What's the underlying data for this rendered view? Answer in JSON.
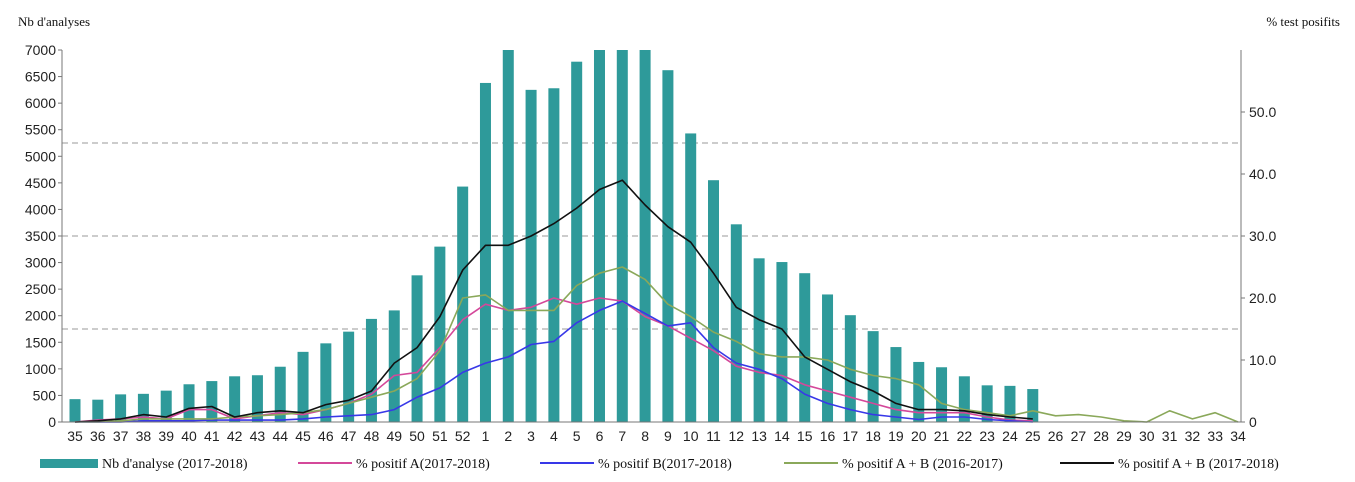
{
  "chart_data": {
    "type": "bar+line",
    "y_left_label": "Nb d'analyses",
    "y_right_label": "% test posifits",
    "y_left_lim": [
      0,
      7000
    ],
    "y_left_ticks": [
      "0",
      "500",
      "1000",
      "1500",
      "2000",
      "2500",
      "3000",
      "3500",
      "4000",
      "4500",
      "5000",
      "5500",
      "6000",
      "6500",
      "7000"
    ],
    "y_right_lim": [
      0,
      60
    ],
    "y_right_ticks": [
      "0",
      "10.0",
      "20.0",
      "30.0",
      "40.0",
      "50.0"
    ],
    "right_grid_values": [
      15,
      30,
      45
    ],
    "grid": "dashed horizontal",
    "legend_position": "bottom",
    "categories": [
      "35",
      "36",
      "37",
      "38",
      "39",
      "40",
      "41",
      "42",
      "43",
      "44",
      "45",
      "46",
      "47",
      "48",
      "49",
      "50",
      "51",
      "52",
      "1",
      "2",
      "3",
      "4",
      "5",
      "6",
      "7",
      "8",
      "9",
      "10",
      "11",
      "12",
      "13",
      "14",
      "15",
      "16",
      "17",
      "18",
      "19",
      "20",
      "21",
      "22",
      "23",
      "24",
      "25",
      "26",
      "27",
      "28",
      "29",
      "30",
      "31",
      "32",
      "33",
      "34"
    ],
    "bars": {
      "name": "Nb d'analyse (2017-2018)",
      "color": "#2e9a9a",
      "axis": "left",
      "values": [
        430,
        420,
        520,
        530,
        590,
        710,
        770,
        860,
        880,
        1040,
        1320,
        1480,
        1700,
        1940,
        2100,
        2760,
        3300,
        4430,
        6380,
        7000,
        6250,
        6280,
        6780,
        7000,
        7000,
        7000,
        6620,
        5430,
        4550,
        3720,
        3080,
        3010,
        2800,
        2400,
        2010,
        1710,
        1410,
        1130,
        1030,
        860,
        690,
        680,
        620,
        null,
        null,
        null,
        null,
        null,
        null,
        null,
        null,
        null
      ]
    },
    "series": [
      {
        "name": "% positif A(2017-2018)",
        "color": "#d4489a",
        "axis": "right",
        "values": [
          0,
          0.3,
          0.5,
          0.8,
          0.5,
          2.0,
          2.0,
          0.5,
          1.0,
          1.5,
          1.2,
          2.0,
          3.0,
          4.5,
          7.5,
          8.0,
          12.0,
          16.5,
          19.0,
          18.0,
          18.5,
          20.0,
          19.0,
          20.0,
          19.5,
          17.0,
          15.5,
          13.5,
          11.5,
          9.0,
          8.0,
          7.5,
          6.0,
          5.0,
          4.0,
          3.0,
          2.0,
          1.5,
          1.5,
          1.5,
          0.8,
          0.3,
          0.2,
          null,
          null,
          null,
          null,
          null,
          null,
          null,
          null,
          null
        ]
      },
      {
        "name": "% positif B(2017-2018)",
        "color": "#3838e8",
        "axis": "right",
        "values": [
          0,
          0,
          0,
          0.2,
          0.2,
          0.2,
          0.3,
          0.3,
          0.3,
          0.3,
          0.5,
          0.8,
          1.0,
          1.2,
          2.0,
          4.0,
          5.5,
          8.0,
          9.5,
          10.5,
          12.5,
          13.0,
          16.0,
          18.0,
          19.5,
          17.5,
          15.5,
          16.0,
          12.0,
          9.5,
          8.5,
          7.0,
          4.5,
          3.0,
          2.0,
          1.2,
          0.8,
          0.4,
          0.8,
          0.8,
          0.4,
          0.2,
          0,
          null,
          null,
          null,
          null,
          null,
          null,
          null,
          null,
          null
        ]
      },
      {
        "name": "% positif A + B (2016-2017)",
        "color": "#8aa85a",
        "axis": "right",
        "values": [
          0,
          0,
          0.2,
          0.5,
          0.5,
          0.5,
          0.5,
          0.8,
          1.0,
          1.2,
          1.5,
          2.0,
          3.0,
          4.0,
          5.0,
          7.0,
          11.5,
          20.0,
          20.5,
          18.0,
          18.0,
          18.0,
          22.0,
          24.0,
          25.0,
          23.0,
          19.0,
          17.0,
          14.5,
          13.0,
          11.0,
          10.5,
          10.5,
          10.0,
          8.5,
          7.5,
          7.0,
          6.0,
          3.0,
          2.0,
          1.5,
          1.0,
          1.8,
          1.0,
          1.2,
          0.8,
          0.2,
          0,
          1.8,
          0.5,
          1.5,
          0
        ]
      },
      {
        "name": "% positif A + B (2017-2018)",
        "color": "#111111",
        "axis": "right",
        "values": [
          0,
          0.2,
          0.5,
          1.2,
          0.8,
          2.2,
          2.5,
          0.8,
          1.5,
          1.8,
          1.5,
          2.8,
          3.5,
          5.0,
          9.5,
          12.0,
          17.0,
          24.5,
          28.5,
          28.5,
          30.0,
          32.0,
          34.5,
          37.5,
          39.0,
          35.0,
          31.5,
          29.0,
          24.0,
          18.5,
          16.5,
          15.0,
          10.5,
          8.5,
          6.5,
          5.0,
          3.0,
          2.0,
          2.0,
          1.8,
          1.2,
          0.8,
          0.5,
          null,
          null,
          null,
          null,
          null,
          null,
          null,
          null,
          null
        ]
      }
    ]
  }
}
